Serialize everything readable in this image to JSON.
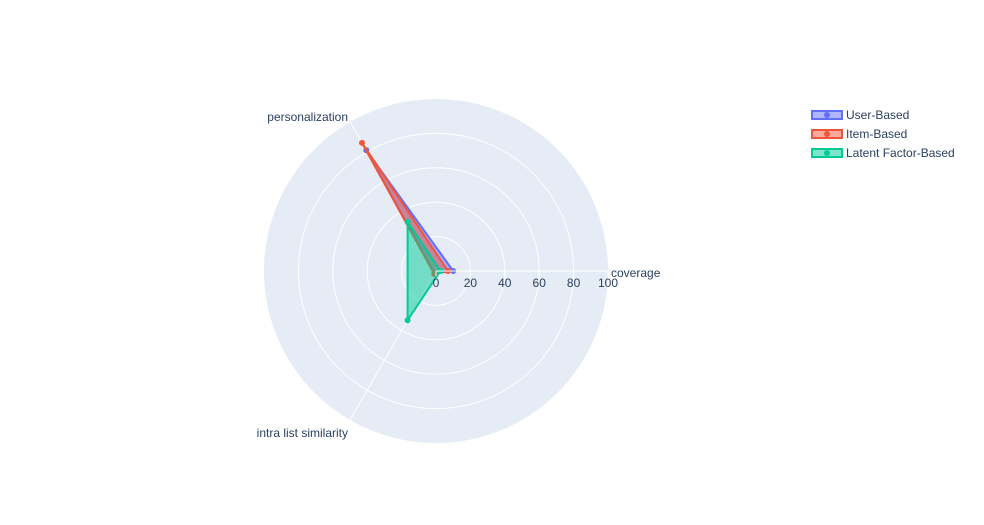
{
  "chart_data": {
    "type": "radar",
    "axes": [
      "coverage",
      "personalization",
      "intra list similarity"
    ],
    "radial_ticks": [
      "0",
      "20",
      "40",
      "60",
      "80",
      "100"
    ],
    "radial_range": [
      0,
      100
    ],
    "legend_placement": "top-right",
    "series": [
      {
        "name": "User-Based",
        "color": "#636efa",
        "values": [
          10,
          81,
          1.5
        ]
      },
      {
        "name": "Item-Based",
        "color": "#ef553b",
        "values": [
          7,
          86,
          2
        ]
      },
      {
        "name": "Latent Factor-Based",
        "color": "#00cc96",
        "values": [
          2.5,
          33,
          33
        ]
      }
    ]
  }
}
